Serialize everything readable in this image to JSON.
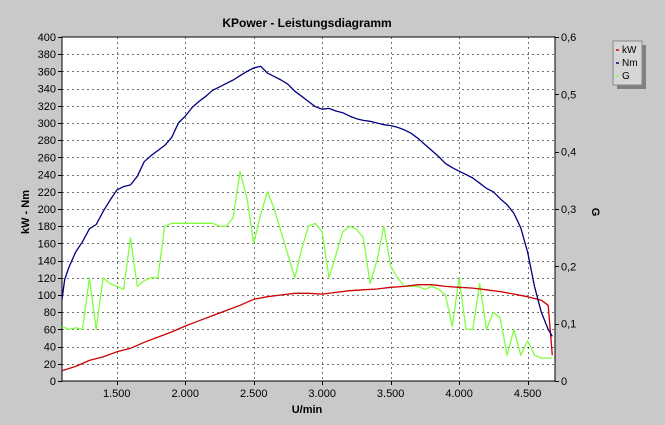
{
  "chart_data": {
    "type": "line",
    "title": "KPower - Leistungsdiagramm",
    "xlabel": "U/min",
    "ylabel_left": "kW - Nm",
    "ylabel_right": "G",
    "xlim": [
      1100,
      4700
    ],
    "ylim_left": [
      0,
      400
    ],
    "ylim_right": [
      0,
      0.6
    ],
    "x_ticks": [
      1500,
      2000,
      2500,
      3000,
      3500,
      4000,
      4500
    ],
    "x_tick_labels": [
      "1.500",
      "2.000",
      "2.500",
      "3.000",
      "3.500",
      "4.000",
      "4.500"
    ],
    "y_left_ticks": [
      0,
      20,
      40,
      60,
      80,
      100,
      120,
      140,
      160,
      180,
      200,
      220,
      240,
      260,
      280,
      300,
      320,
      340,
      360,
      380,
      400
    ],
    "y_left_tick_labels": [
      "0",
      "20",
      "40",
      "60",
      "80",
      "100",
      "120",
      "140",
      "160",
      "180",
      "200",
      "220",
      "240",
      "260",
      "280",
      "300",
      "320",
      "340",
      "360",
      "380",
      "400"
    ],
    "y_right_ticks": [
      0,
      0.1,
      0.2,
      0.3,
      0.4,
      0.5,
      0.6
    ],
    "y_right_tick_labels": [
      "0",
      "0,1",
      "0,2",
      "0,3",
      "0,4",
      "0,5",
      "0,6"
    ],
    "grid": true,
    "legend_position": "right",
    "series": [
      {
        "name": "kW",
        "axis": "left",
        "color": "#cc0000",
        "x": [
          1100,
          1200,
          1300,
          1400,
          1500,
          1600,
          1700,
          1800,
          1900,
          2000,
          2100,
          2200,
          2300,
          2400,
          2500,
          2600,
          2700,
          2800,
          2900,
          3000,
          3100,
          3200,
          3300,
          3400,
          3500,
          3600,
          3700,
          3800,
          3900,
          4000,
          4100,
          4200,
          4300,
          4400,
          4500,
          4600,
          4650,
          4680
        ],
        "y": [
          12,
          17,
          24,
          28,
          34,
          38,
          45,
          51,
          57,
          64,
          70,
          76,
          82,
          88,
          95,
          98,
          100,
          102,
          102,
          101,
          103,
          105,
          106,
          107,
          109,
          110,
          112,
          112,
          110,
          109,
          108,
          106,
          104,
          101,
          98,
          94,
          88,
          30
        ]
      },
      {
        "name": "Nm",
        "axis": "left",
        "color": "#000080",
        "x": [
          1100,
          1120,
          1150,
          1200,
          1250,
          1300,
          1350,
          1400,
          1450,
          1500,
          1550,
          1600,
          1650,
          1700,
          1750,
          1800,
          1850,
          1900,
          1950,
          2000,
          2050,
          2100,
          2150,
          2200,
          2250,
          2300,
          2350,
          2400,
          2450,
          2500,
          2550,
          2600,
          2650,
          2700,
          2750,
          2800,
          2850,
          2900,
          2950,
          3000,
          3050,
          3100,
          3150,
          3200,
          3250,
          3300,
          3350,
          3400,
          3450,
          3500,
          3550,
          3600,
          3650,
          3700,
          3750,
          3800,
          3850,
          3900,
          3950,
          4000,
          4050,
          4100,
          4150,
          4200,
          4250,
          4300,
          4350,
          4400,
          4450,
          4500,
          4550,
          4600,
          4650,
          4680
        ],
        "y": [
          95,
          118,
          132,
          150,
          162,
          177,
          182,
          197,
          210,
          222,
          226,
          228,
          238,
          255,
          262,
          268,
          274,
          283,
          300,
          308,
          318,
          325,
          331,
          338,
          342,
          346,
          350,
          355,
          360,
          364,
          366,
          358,
          354,
          350,
          345,
          337,
          331,
          325,
          319,
          316,
          317,
          314,
          312,
          308,
          305,
          303,
          302,
          300,
          298,
          297,
          295,
          292,
          288,
          282,
          275,
          268,
          261,
          253,
          248,
          244,
          240,
          236,
          230,
          224,
          220,
          212,
          205,
          195,
          178,
          150,
          110,
          80,
          60,
          52
        ]
      },
      {
        "name": "G",
        "axis": "right",
        "color": "#80ff40",
        "x": [
          1100,
          1150,
          1200,
          1250,
          1300,
          1350,
          1400,
          1450,
          1500,
          1550,
          1600,
          1650,
          1700,
          1750,
          1800,
          1850,
          1900,
          1950,
          2000,
          2050,
          2100,
          2150,
          2200,
          2250,
          2300,
          2350,
          2400,
          2450,
          2500,
          2550,
          2600,
          2650,
          2700,
          2750,
          2800,
          2850,
          2900,
          2950,
          3000,
          3050,
          3100,
          3150,
          3200,
          3250,
          3300,
          3350,
          3400,
          3450,
          3500,
          3550,
          3600,
          3650,
          3700,
          3750,
          3800,
          3850,
          3900,
          3950,
          4000,
          4050,
          4100,
          4150,
          4200,
          4250,
          4300,
          4350,
          4400,
          4450,
          4500,
          4550,
          4600,
          4650,
          4680
        ],
        "y": [
          0.095,
          0.09,
          0.093,
          0.09,
          0.18,
          0.09,
          0.18,
          0.17,
          0.165,
          0.16,
          0.25,
          0.165,
          0.175,
          0.18,
          0.18,
          0.27,
          0.275,
          0.275,
          0.275,
          0.275,
          0.275,
          0.275,
          0.275,
          0.27,
          0.27,
          0.285,
          0.365,
          0.32,
          0.24,
          0.29,
          0.33,
          0.3,
          0.26,
          0.22,
          0.18,
          0.23,
          0.27,
          0.275,
          0.26,
          0.18,
          0.22,
          0.26,
          0.27,
          0.265,
          0.25,
          0.17,
          0.21,
          0.27,
          0.2,
          0.18,
          0.165,
          0.165,
          0.165,
          0.16,
          0.165,
          0.16,
          0.15,
          0.095,
          0.18,
          0.09,
          0.09,
          0.17,
          0.09,
          0.12,
          0.11,
          0.045,
          0.09,
          0.045,
          0.07,
          0.045,
          0.04,
          0.04,
          0.04
        ]
      }
    ]
  }
}
